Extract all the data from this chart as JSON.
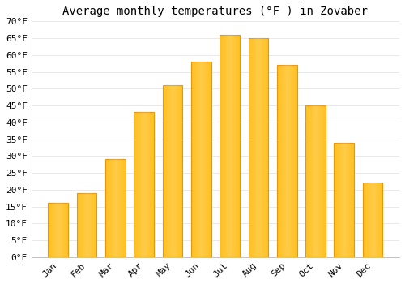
{
  "title": "Average monthly temperatures (°F ) in Zovaber",
  "months": [
    "Jan",
    "Feb",
    "Mar",
    "Apr",
    "May",
    "Jun",
    "Jul",
    "Aug",
    "Sep",
    "Oct",
    "Nov",
    "Dec"
  ],
  "values": [
    16,
    19,
    29,
    43,
    51,
    58,
    66,
    65,
    57,
    45,
    34,
    22
  ],
  "bar_color_main": "#FFC020",
  "bar_color_edge": "#E8960A",
  "ylim": [
    0,
    70
  ],
  "yticks": [
    0,
    5,
    10,
    15,
    20,
    25,
    30,
    35,
    40,
    45,
    50,
    55,
    60,
    65,
    70
  ],
  "ylabel_suffix": "°F",
  "background_color": "#ffffff",
  "plot_bg_color": "#ffffff",
  "title_fontsize": 10,
  "tick_fontsize": 8,
  "grid_color": "#e0e0e0",
  "font_family": "monospace",
  "figsize": [
    5.0,
    3.5
  ],
  "dpi": 100
}
